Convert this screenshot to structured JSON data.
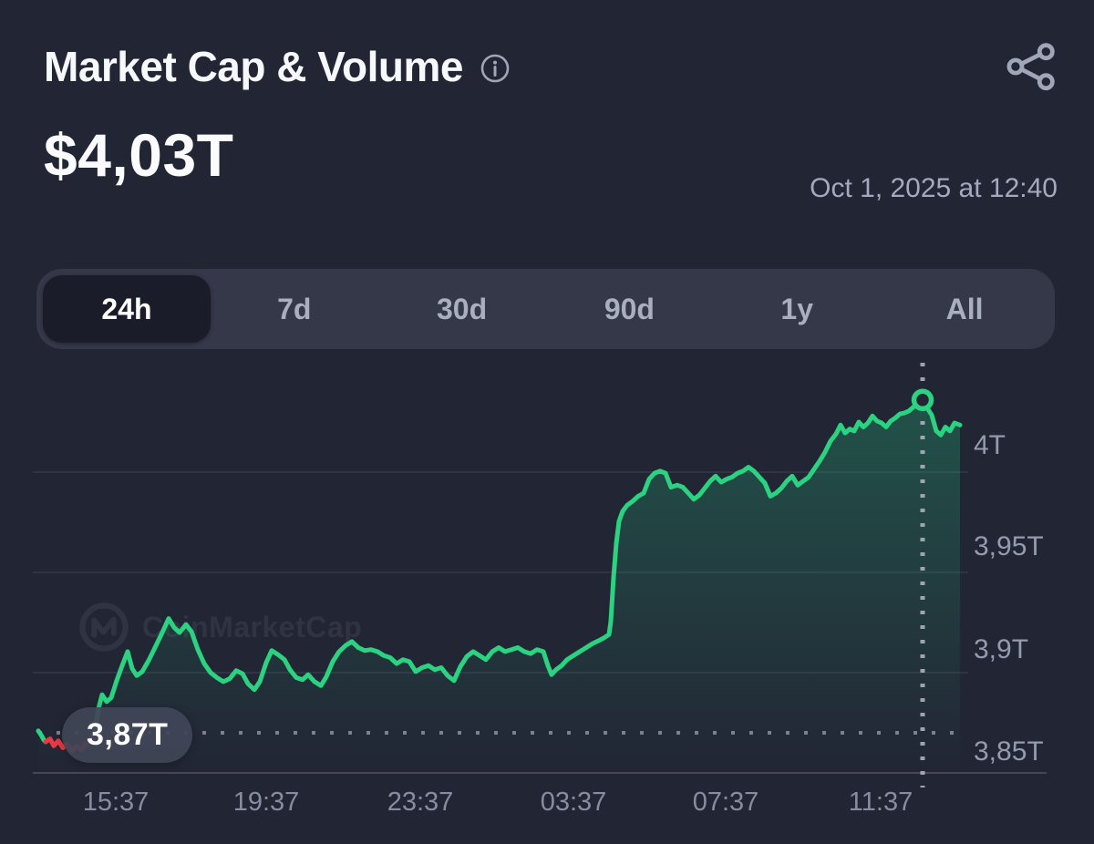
{
  "header": {
    "title": "Market Cap & Volume",
    "value": "$4,03T",
    "timestamp": "Oct 1, 2025 at 12:40"
  },
  "range_tabs": {
    "selected": "24h",
    "items": [
      {
        "label": "24h"
      },
      {
        "label": "7d"
      },
      {
        "label": "30d"
      },
      {
        "label": "90d"
      },
      {
        "label": "1y"
      },
      {
        "label": "All"
      }
    ]
  },
  "watermark": {
    "label": "CoinMarketCap"
  },
  "chart_data": {
    "type": "line",
    "title": "Market Cap & Volume (24h)",
    "unit": "trillion USD",
    "ylim": [
      3.83,
      4.05
    ],
    "grid": "horizontal",
    "y_ticks": [
      "4T",
      "3,95T",
      "3,9T",
      "3,85T"
    ],
    "y_tick_values": [
      4.0,
      3.95,
      3.9,
      3.85
    ],
    "x_ticks": [
      "15:37",
      "19:37",
      "23:37",
      "03:37",
      "07:37",
      "11:37"
    ],
    "baseline": {
      "value": 3.87,
      "label": "3,87T"
    },
    "current_marker": {
      "x": 1012,
      "value": 4.036
    },
    "colors": {
      "up": "#2bd381",
      "down": "#ea3943",
      "grid": "rgba(255,255,255,0.09)",
      "axis": "rgba(255,255,255,0.16)",
      "dotted": "#8b90a0",
      "cursor": "#a6aab8",
      "fill": "#22d388"
    },
    "series": [
      {
        "direction": "up",
        "points": [
          [
            42,
            3.871
          ],
          [
            45,
            3.869
          ],
          [
            48,
            3.8665
          ],
          [
            50,
            3.8655
          ]
        ]
      },
      {
        "direction": "down",
        "points": [
          [
            50,
            3.8655
          ],
          [
            55,
            3.867
          ],
          [
            59,
            3.8635
          ],
          [
            64,
            3.866
          ],
          [
            69,
            3.8625
          ],
          [
            74,
            3.8645
          ],
          [
            79,
            3.861
          ],
          [
            84,
            3.8635
          ],
          [
            89,
            3.8615
          ],
          [
            94,
            3.8645
          ],
          [
            98,
            3.866
          ],
          [
            101,
            3.8685
          ],
          [
            104,
            3.871
          ]
        ]
      },
      {
        "direction": "up",
        "points": [
          [
            104,
            3.871
          ],
          [
            108,
            3.882
          ],
          [
            112,
            3.889
          ],
          [
            117,
            3.8855
          ],
          [
            122,
            3.8875
          ],
          [
            128,
            3.896
          ],
          [
            134,
            3.9035
          ],
          [
            140,
            3.9105
          ],
          [
            145,
            3.902
          ],
          [
            150,
            3.8985
          ],
          [
            156,
            3.9005
          ],
          [
            163,
            3.906
          ],
          [
            170,
            3.9125
          ],
          [
            178,
            3.92
          ],
          [
            185,
            3.927
          ],
          [
            191,
            3.9225
          ],
          [
            197,
            3.92
          ],
          [
            204,
            3.924
          ],
          [
            210,
            3.9205
          ],
          [
            217,
            3.9115
          ],
          [
            224,
            3.9045
          ],
          [
            231,
            3.9
          ],
          [
            238,
            3.8975
          ],
          [
            245,
            3.8955
          ],
          [
            252,
            3.897
          ],
          [
            259,
            3.901
          ],
          [
            266,
            3.8995
          ],
          [
            272,
            3.8945
          ],
          [
            279,
            3.8915
          ],
          [
            285,
            3.8955
          ],
          [
            292,
            3.905
          ],
          [
            298,
            3.911
          ],
          [
            305,
            3.909
          ],
          [
            312,
            3.9065
          ],
          [
            318,
            3.9015
          ],
          [
            325,
            3.8975
          ],
          [
            332,
            3.8965
          ],
          [
            338,
            3.899
          ],
          [
            345,
            3.8955
          ],
          [
            352,
            3.8935
          ],
          [
            358,
            3.898
          ],
          [
            365,
            3.9055
          ],
          [
            372,
            3.9105
          ],
          [
            379,
            3.9135
          ],
          [
            386,
            3.9155
          ],
          [
            393,
            3.9125
          ],
          [
            400,
            3.911
          ],
          [
            407,
            3.9115
          ],
          [
            414,
            3.9105
          ],
          [
            421,
            3.9085
          ],
          [
            428,
            3.9075
          ],
          [
            435,
            3.9045
          ],
          [
            442,
            3.9065
          ],
          [
            449,
            3.9055
          ],
          [
            456,
            3.9005
          ],
          [
            463,
            3.9025
          ],
          [
            470,
            3.9035
          ],
          [
            477,
            3.9015
          ],
          [
            484,
            3.9025
          ],
          [
            491,
            3.8985
          ],
          [
            498,
            3.896
          ],
          [
            505,
            3.903
          ],
          [
            512,
            3.908
          ],
          [
            519,
            3.9105
          ],
          [
            526,
            3.9085
          ],
          [
            533,
            3.9065
          ],
          [
            540,
            3.9105
          ],
          [
            547,
            3.9125
          ],
          [
            554,
            3.9105
          ],
          [
            561,
            3.9115
          ],
          [
            568,
            3.9125
          ],
          [
            575,
            3.9105
          ],
          [
            582,
            3.9095
          ],
          [
            589,
            3.9115
          ],
          [
            596,
            3.9105
          ],
          [
            601,
            3.9035
          ],
          [
            605,
            3.899
          ],
          [
            610,
            3.9015
          ],
          [
            616,
            3.9035
          ],
          [
            622,
            3.9065
          ],
          [
            629,
            3.9085
          ],
          [
            636,
            3.9105
          ],
          [
            643,
            3.9125
          ],
          [
            650,
            3.9145
          ],
          [
            657,
            3.916
          ],
          [
            663,
            3.9175
          ],
          [
            668,
            3.919
          ],
          [
            670,
            3.9255
          ],
          [
            673,
            3.9475
          ],
          [
            676,
            3.9645
          ],
          [
            679,
            3.9755
          ],
          [
            683,
            3.9805
          ],
          [
            688,
            3.9835
          ],
          [
            694,
            3.9855
          ],
          [
            700,
            3.988
          ],
          [
            706,
            3.9895
          ],
          [
            712,
            3.9965
          ],
          [
            718,
            3.9995
          ],
          [
            724,
            4.0005
          ],
          [
            730,
            3.9995
          ],
          [
            736,
            3.9925
          ],
          [
            743,
            3.9935
          ],
          [
            749,
            3.9925
          ],
          [
            755,
            3.9895
          ],
          [
            761,
            3.9865
          ],
          [
            767,
            3.9885
          ],
          [
            773,
            3.992
          ],
          [
            779,
            3.9955
          ],
          [
            785,
            3.998
          ],
          [
            791,
            3.995
          ],
          [
            797,
            3.9965
          ],
          [
            803,
            3.9975
          ],
          [
            809,
            3.9995
          ],
          [
            815,
            4.0005
          ],
          [
            821,
            4.0025
          ],
          [
            827,
            4.0005
          ],
          [
            833,
            3.9975
          ],
          [
            839,
            3.9945
          ],
          [
            845,
            3.988
          ],
          [
            851,
            3.9895
          ],
          [
            857,
            3.992
          ],
          [
            863,
            3.9955
          ],
          [
            869,
            3.998
          ],
          [
            875,
            3.9935
          ],
          [
            881,
            3.9955
          ],
          [
            887,
            3.9975
          ],
          [
            893,
            4.0015
          ],
          [
            899,
            4.0055
          ],
          [
            905,
            4.01
          ],
          [
            911,
            4.0155
          ],
          [
            917,
            4.019
          ],
          [
            922,
            4.0235
          ],
          [
            927,
            4.0195
          ],
          [
            932,
            4.0215
          ],
          [
            937,
            4.0205
          ],
          [
            942,
            4.025
          ],
          [
            947,
            4.0225
          ],
          [
            952,
            4.0245
          ],
          [
            957,
            4.028
          ],
          [
            962,
            4.0255
          ],
          [
            967,
            4.0245
          ],
          [
            972,
            4.0225
          ],
          [
            977,
            4.0255
          ],
          [
            982,
            4.027
          ],
          [
            987,
            4.029
          ],
          [
            992,
            4.0295
          ],
          [
            997,
            4.0305
          ],
          [
            1002,
            4.0325
          ],
          [
            1007,
            4.034
          ],
          [
            1012,
            4.036
          ],
          [
            1017,
            4.032
          ],
          [
            1022,
            4.0285
          ],
          [
            1027,
            4.0205
          ],
          [
            1032,
            4.0185
          ],
          [
            1037,
            4.0225
          ],
          [
            1042,
            4.0205
          ],
          [
            1047,
            4.0245
          ],
          [
            1053,
            4.0235
          ]
        ]
      }
    ]
  }
}
